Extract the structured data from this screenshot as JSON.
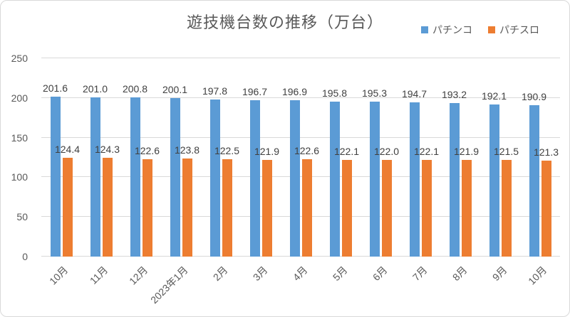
{
  "chart_data": {
    "type": "bar",
    "title": "遊技機台数の推移（万台）",
    "categories": [
      "10月",
      "11月",
      "12月",
      "2023年1月",
      "2月",
      "3月",
      "4月",
      "5月",
      "6月",
      "7月",
      "8月",
      "9月",
      "10月"
    ],
    "series": [
      {
        "key": "pachinko",
        "name": "パチンコ",
        "color": "#5B9BD5",
        "values": [
          201.6,
          201.0,
          200.8,
          200.1,
          197.8,
          196.7,
          196.9,
          195.8,
          195.3,
          194.7,
          193.2,
          192.1,
          190.9
        ]
      },
      {
        "key": "pachislot",
        "name": "パチスロ",
        "color": "#ED7D31",
        "values": [
          124.4,
          124.3,
          122.6,
          123.8,
          122.5,
          121.9,
          122.6,
          122.1,
          122.0,
          122.1,
          121.9,
          121.5,
          121.3
        ]
      }
    ],
    "xlabel": "",
    "ylabel": "",
    "ylim": [
      0,
      250
    ],
    "yticks": [
      0,
      50,
      100,
      150,
      200,
      250
    ],
    "grid": true,
    "legend_position": "top-right",
    "value_label_decimals": 1
  },
  "colors": {
    "pachinko": "#5B9BD5",
    "pachislot": "#ED7D31",
    "title_text": "#595959",
    "axis_text": "#595959",
    "data_label_text": "#404040",
    "gridline": "#D9D9D9",
    "frame_border": "#D9D9D9",
    "background": "#FFFFFF"
  }
}
